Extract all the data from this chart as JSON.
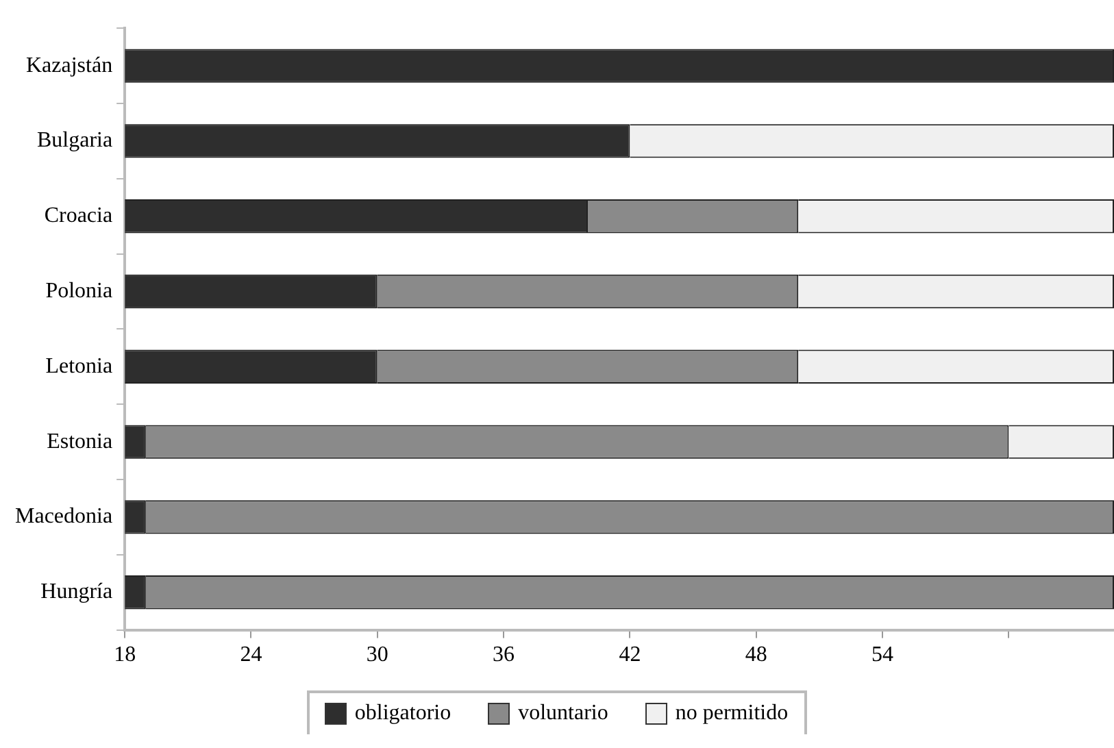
{
  "chart_data": {
    "type": "bar",
    "orientation": "horizontal",
    "categories": [
      "Kazajstán",
      "Bulgaria",
      "Croacia",
      "Polonia",
      "Letonia",
      "Estonia",
      "Macedonia",
      "Hungría"
    ],
    "series": [
      {
        "name": "obligatorio",
        "color": "#2e2e2e",
        "base": [
          18,
          18,
          18,
          18,
          18,
          18,
          18,
          18
        ],
        "values": [
          47,
          24,
          22,
          12,
          12,
          1,
          1,
          1
        ]
      },
      {
        "name": "voluntario",
        "color": "#8a8a8a",
        "base": [
          null,
          null,
          40,
          30,
          30,
          19,
          19,
          19
        ],
        "values": [
          null,
          null,
          10,
          20,
          20,
          41,
          46,
          46
        ]
      },
      {
        "name": "no permitido",
        "color": "#f0f0f0",
        "base": [
          null,
          42,
          50,
          50,
          50,
          60,
          null,
          null
        ],
        "values": [
          null,
          23,
          15,
          15,
          15,
          5,
          null,
          null
        ]
      }
    ],
    "xlim": [
      18,
      65
    ],
    "xticks": [
      18,
      24,
      30,
      36,
      42,
      48,
      54,
      {
        "value": 60,
        "label": null
      }
    ],
    "grid": false,
    "legend": "bottom"
  }
}
